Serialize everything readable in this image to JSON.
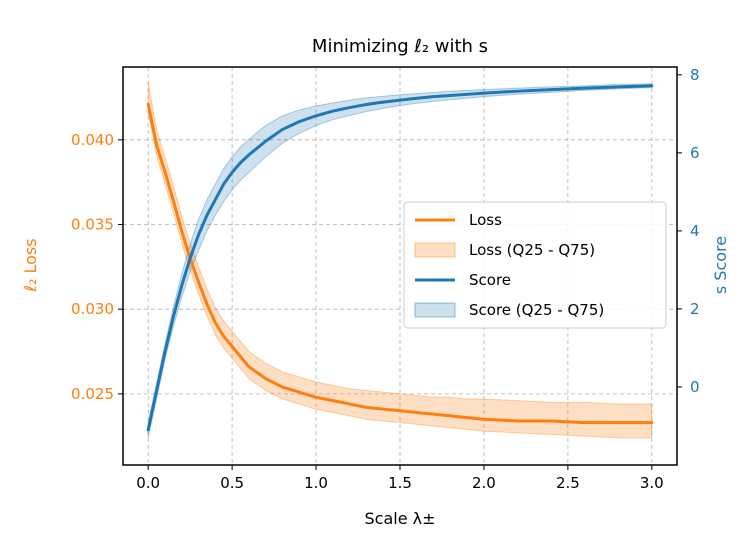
{
  "chart_data": {
    "type": "line",
    "title": "Minimizing ℓ₂ with s",
    "xlabel": "Scale λ±",
    "ylabel_left": "ℓ₂ Loss",
    "ylabel_right": "s Score",
    "xlim": [
      -0.15,
      3.15
    ],
    "ylim_left": [
      0.0208,
      0.0443
    ],
    "ylim_right": [
      -2.0,
      8.2
    ],
    "x_ticks": [
      "0.0",
      "0.5",
      "1.0",
      "1.5",
      "2.0",
      "2.5",
      "3.0"
    ],
    "y_left_ticks": [
      "0.025",
      "0.030",
      "0.035",
      "0.040"
    ],
    "y_right_ticks": [
      "0",
      "2",
      "4",
      "6",
      "8"
    ],
    "grid": true,
    "legend_position": "center-right",
    "x": [
      0.0,
      0.05,
      0.1,
      0.15,
      0.2,
      0.25,
      0.3,
      0.35,
      0.4,
      0.45,
      0.5,
      0.55,
      0.6,
      0.7,
      0.8,
      0.9,
      1.0,
      1.1,
      1.2,
      1.3,
      1.4,
      1.5,
      1.6,
      1.7,
      1.8,
      1.9,
      2.0,
      2.2,
      2.4,
      2.6,
      2.8,
      3.0
    ],
    "series": [
      {
        "name": "Loss",
        "axis": "left",
        "color": "#ff7f0e",
        "values": [
          0.0421,
          0.0397,
          0.0381,
          0.0364,
          0.0346,
          0.033,
          0.0316,
          0.0303,
          0.0292,
          0.0284,
          0.0278,
          0.0272,
          0.0266,
          0.0259,
          0.0254,
          0.0251,
          0.0248,
          0.0246,
          0.0244,
          0.0242,
          0.0241,
          0.024,
          0.0239,
          0.0238,
          0.0237,
          0.0236,
          0.0235,
          0.0234,
          0.0234,
          0.0233,
          0.0233,
          0.0233
        ],
        "band": {
          "name": "Loss (Q25 - Q75)",
          "lower": [
            0.0416,
            0.0391,
            0.0374,
            0.0357,
            0.0339,
            0.0323,
            0.0309,
            0.0296,
            0.0285,
            0.0277,
            0.0271,
            0.0265,
            0.0259,
            0.0252,
            0.0247,
            0.0244,
            0.0241,
            0.0239,
            0.0237,
            0.0235,
            0.0234,
            0.0233,
            0.0232,
            0.0231,
            0.023,
            0.0229,
            0.0228,
            0.0227,
            0.0226,
            0.0225,
            0.0224,
            0.0224
          ],
          "upper": [
            0.0434,
            0.0406,
            0.039,
            0.0373,
            0.0355,
            0.0339,
            0.0325,
            0.0312,
            0.0301,
            0.0293,
            0.0287,
            0.0281,
            0.0275,
            0.0268,
            0.0263,
            0.026,
            0.0257,
            0.0255,
            0.0253,
            0.0252,
            0.0251,
            0.025,
            0.0249,
            0.0248,
            0.0248,
            0.0247,
            0.0247,
            0.0246,
            0.0245,
            0.0245,
            0.0244,
            0.0244
          ]
        }
      },
      {
        "name": "Score",
        "axis": "right",
        "color": "#1f77b4",
        "values": [
          -1.1,
          -0.1,
          0.9,
          1.8,
          2.6,
          3.3,
          3.9,
          4.4,
          4.8,
          5.2,
          5.5,
          5.75,
          5.95,
          6.3,
          6.6,
          6.8,
          6.95,
          7.07,
          7.16,
          7.24,
          7.3,
          7.35,
          7.4,
          7.44,
          7.47,
          7.5,
          7.53,
          7.58,
          7.62,
          7.66,
          7.69,
          7.72
        ],
        "band": {
          "name": "Score (Q25 - Q75)",
          "lower": [
            -1.3,
            -0.3,
            0.7,
            1.55,
            2.3,
            2.95,
            3.5,
            4.0,
            4.4,
            4.75,
            5.05,
            5.3,
            5.5,
            5.9,
            6.25,
            6.5,
            6.7,
            6.85,
            6.96,
            7.06,
            7.14,
            7.21,
            7.27,
            7.32,
            7.36,
            7.4,
            7.44,
            7.5,
            7.55,
            7.6,
            7.64,
            7.67
          ],
          "upper": [
            -0.9,
            0.1,
            1.1,
            2.05,
            2.9,
            3.65,
            4.3,
            4.8,
            5.2,
            5.6,
            5.9,
            6.15,
            6.35,
            6.7,
            6.95,
            7.1,
            7.2,
            7.28,
            7.35,
            7.41,
            7.45,
            7.49,
            7.52,
            7.55,
            7.58,
            7.6,
            7.62,
            7.66,
            7.69,
            7.72,
            7.75,
            7.77
          ]
        }
      }
    ]
  }
}
